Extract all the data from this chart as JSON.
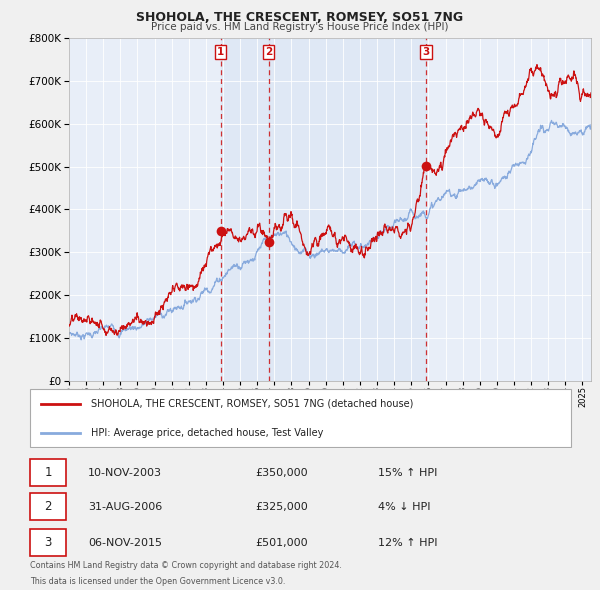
{
  "title": "SHOHOLA, THE CRESCENT, ROMSEY, SO51 7NG",
  "subtitle": "Price paid vs. HM Land Registry's House Price Index (HPI)",
  "background_color": "#f0f0f0",
  "plot_bg_color": "#e8eef8",
  "ylim": [
    0,
    800000
  ],
  "yticks": [
    0,
    100000,
    200000,
    300000,
    400000,
    500000,
    600000,
    700000,
    800000
  ],
  "xlim_start": 1995.0,
  "xlim_end": 2025.5,
  "xticks": [
    1995,
    1996,
    1997,
    1998,
    1999,
    2000,
    2001,
    2002,
    2003,
    2004,
    2005,
    2006,
    2007,
    2008,
    2009,
    2010,
    2011,
    2012,
    2013,
    2014,
    2015,
    2016,
    2017,
    2018,
    2019,
    2020,
    2021,
    2022,
    2023,
    2024,
    2025
  ],
  "sale_color": "#cc1111",
  "hpi_color": "#88aadd",
  "vline_color": "#cc1111",
  "transactions": [
    {
      "label": "1",
      "date": 2003.86,
      "price": 350000,
      "pct": "15%",
      "direction": "↑",
      "date_str": "10-NOV-2003"
    },
    {
      "label": "2",
      "date": 2006.66,
      "price": 325000,
      "pct": "4%",
      "direction": "↓",
      "date_str": "31-AUG-2006"
    },
    {
      "label": "3",
      "date": 2015.85,
      "price": 501000,
      "pct": "12%",
      "direction": "↑",
      "date_str": "06-NOV-2015"
    }
  ],
  "legend_line1": "SHOHOLA, THE CRESCENT, ROMSEY, SO51 7NG (detached house)",
  "legend_line2": "HPI: Average price, detached house, Test Valley",
  "footer1": "Contains HM Land Registry data © Crown copyright and database right 2024.",
  "footer2": "This data is licensed under the Open Government Licence v3.0."
}
